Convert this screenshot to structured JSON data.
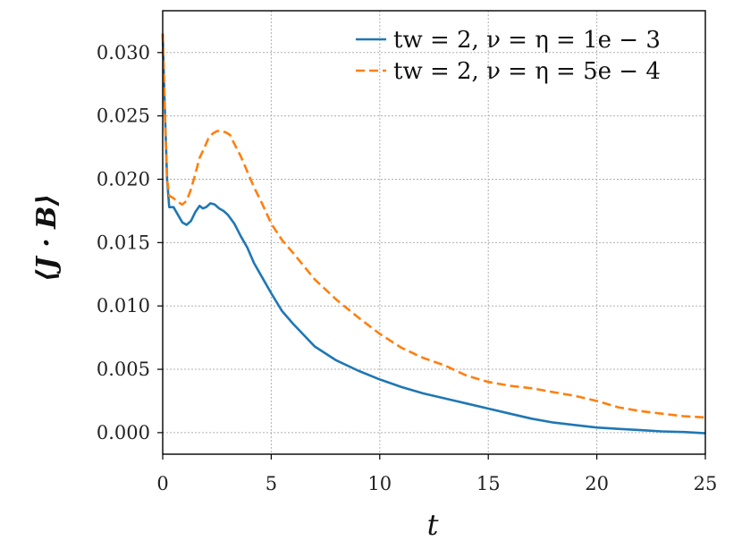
{
  "chart_data": {
    "type": "line",
    "xlabel": "t",
    "ylabel": "⟨J · B⟩",
    "xlim": [
      0,
      25
    ],
    "ylim": [
      -0.0017,
      0.0333
    ],
    "xticks": [
      0,
      5,
      10,
      15,
      20,
      25
    ],
    "yticks": [
      0.0,
      0.005,
      0.01,
      0.015,
      0.02,
      0.025,
      0.03
    ],
    "xtick_labels": [
      "0",
      "5",
      "10",
      "15",
      "20",
      "25"
    ],
    "ytick_labels": [
      "0.000",
      "0.005",
      "0.010",
      "0.015",
      "0.020",
      "0.025",
      "0.030"
    ],
    "grid": true,
    "legend_position": "top-right",
    "series": [
      {
        "name": "tw = 2, ν = η = 1e − 3",
        "color": "#1f77b4",
        "style": "solid",
        "x": [
          0,
          0.1,
          0.2,
          0.3,
          0.5,
          0.7,
          0.9,
          1.1,
          1.3,
          1.5,
          1.7,
          1.85,
          2.0,
          2.2,
          2.4,
          2.6,
          2.8,
          3.0,
          3.3,
          3.6,
          3.9,
          4.2,
          4.5,
          5.0,
          5.5,
          6.0,
          7.0,
          8.0,
          9.0,
          10.0,
          11.0,
          12.0,
          13.0,
          14.0,
          15.0,
          16.0,
          17.0,
          18.0,
          19.0,
          20.0,
          21.0,
          22.0,
          23.0,
          24.0,
          25.0
        ],
        "y": [
          0.0315,
          0.0255,
          0.02,
          0.0178,
          0.0178,
          0.0172,
          0.0166,
          0.0164,
          0.0167,
          0.0174,
          0.0179,
          0.0177,
          0.0178,
          0.0181,
          0.018,
          0.0177,
          0.0175,
          0.0172,
          0.0165,
          0.0155,
          0.0146,
          0.0134,
          0.0125,
          0.011,
          0.0096,
          0.0086,
          0.0068,
          0.0057,
          0.0049,
          0.0042,
          0.0036,
          0.0031,
          0.0027,
          0.0023,
          0.0019,
          0.0015,
          0.0011,
          0.0008,
          0.0006,
          0.0004,
          0.0003,
          0.0002,
          0.0001,
          5e-05,
          -5e-05
        ]
      },
      {
        "name": "tw = 2, ν = η = 5e − 4",
        "color": "#ff7f0e",
        "style": "dashed",
        "x": [
          0,
          0.1,
          0.2,
          0.3,
          0.5,
          0.7,
          0.9,
          1.1,
          1.3,
          1.5,
          1.7,
          1.9,
          2.1,
          2.3,
          2.5,
          2.7,
          2.9,
          3.1,
          3.3,
          3.6,
          3.9,
          4.2,
          4.6,
          5.0,
          5.5,
          6.0,
          7.0,
          8.0,
          9.0,
          10.0,
          11.0,
          12.0,
          13.0,
          14.0,
          15.0,
          16.0,
          17.0,
          18.0,
          19.0,
          20.0,
          21.0,
          22.0,
          23.0,
          24.0,
          25.0
        ],
        "y": [
          0.0315,
          0.025,
          0.02,
          0.0187,
          0.0185,
          0.0182,
          0.018,
          0.0183,
          0.0192,
          0.0204,
          0.0217,
          0.0224,
          0.0232,
          0.0236,
          0.0238,
          0.0238,
          0.0237,
          0.0235,
          0.0228,
          0.0218,
          0.0206,
          0.0194,
          0.018,
          0.0165,
          0.0152,
          0.0142,
          0.0121,
          0.0105,
          0.0091,
          0.0078,
          0.0067,
          0.0059,
          0.0053,
          0.0045,
          0.004,
          0.0037,
          0.0035,
          0.0032,
          0.0029,
          0.0025,
          0.002,
          0.0017,
          0.0015,
          0.0013,
          0.0012
        ]
      }
    ]
  }
}
